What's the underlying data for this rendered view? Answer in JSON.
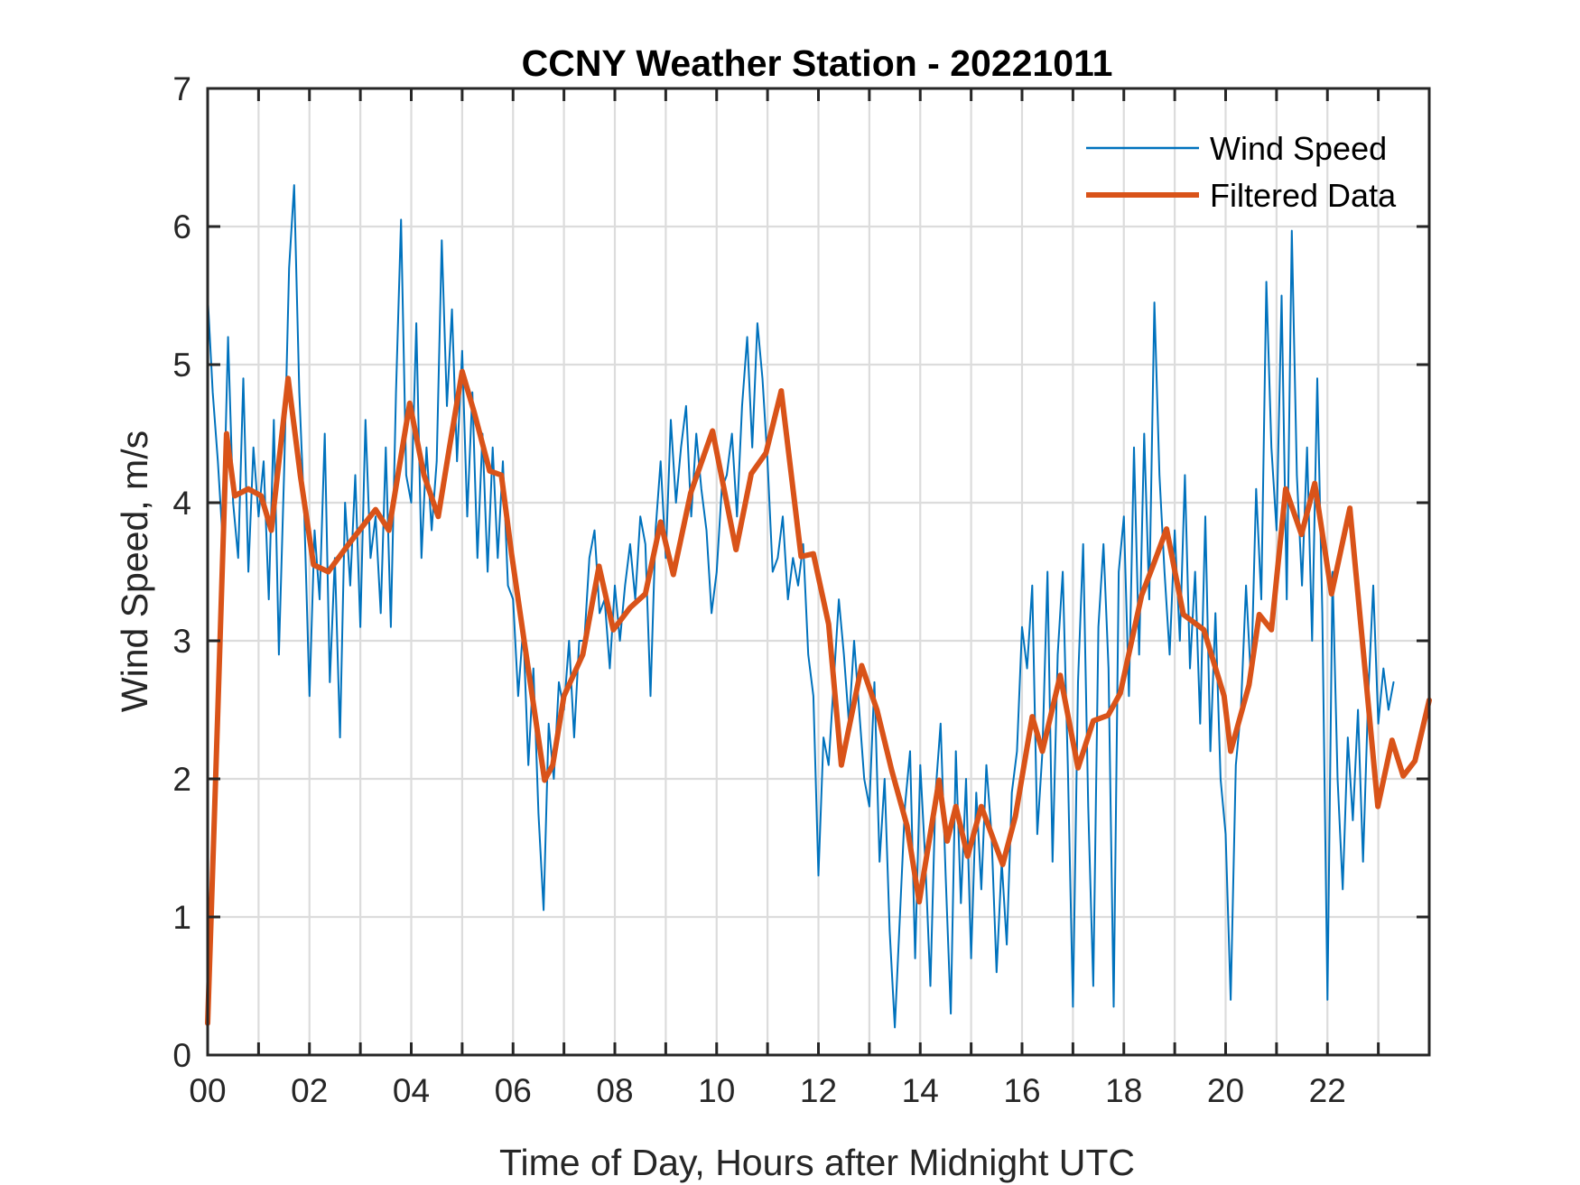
{
  "chart_data": {
    "type": "line",
    "title": "CCNY Weather Station - 20221011",
    "xlabel": "Time of Day, Hours after Midnight UTC",
    "ylabel": "Wind Speed, m/s",
    "xlim": [
      0,
      24
    ],
    "ylim": [
      0,
      7
    ],
    "xticks_minor_every_hours": 1,
    "xtick_labels": [
      "00",
      "02",
      "04",
      "06",
      "08",
      "10",
      "12",
      "14",
      "16",
      "18",
      "20",
      "22"
    ],
    "xtick_values": [
      0,
      2,
      4,
      6,
      8,
      10,
      12,
      14,
      16,
      18,
      20,
      22
    ],
    "yticks": [
      0,
      1,
      2,
      3,
      4,
      5,
      6,
      7
    ],
    "ytick_labels": [
      "0",
      "1",
      "2",
      "3",
      "4",
      "5",
      "6",
      "7"
    ],
    "grid": true,
    "legend_position": "top-right",
    "series": [
      {
        "name": "Wind Speed",
        "color": "#0072BD",
        "style": "thin",
        "x_step_hours": 0.1,
        "x_start": 0,
        "values": [
          5.5,
          4.8,
          4.3,
          3.7,
          5.2,
          4.0,
          3.6,
          4.9,
          3.5,
          4.4,
          3.9,
          4.3,
          3.3,
          4.6,
          2.9,
          4.2,
          5.7,
          6.3,
          4.8,
          3.9,
          2.6,
          3.8,
          3.3,
          4.5,
          2.7,
          3.6,
          2.3,
          4.0,
          3.4,
          4.2,
          3.1,
          4.6,
          3.6,
          3.9,
          3.2,
          4.4,
          3.1,
          4.8,
          6.05,
          4.2,
          4.0,
          5.3,
          3.6,
          4.4,
          3.8,
          4.3,
          5.9,
          4.7,
          5.4,
          4.3,
          5.1,
          3.9,
          4.8,
          3.6,
          4.5,
          3.5,
          4.4,
          3.6,
          4.3,
          3.4,
          3.3,
          2.6,
          3.1,
          2.1,
          2.8,
          1.75,
          1.05,
          2.4,
          2.0,
          2.7,
          2.5,
          3.0,
          2.3,
          3.0,
          3.0,
          3.6,
          3.8,
          3.2,
          3.3,
          2.8,
          3.4,
          3.0,
          3.4,
          3.7,
          3.3,
          3.9,
          3.7,
          2.6,
          3.8,
          4.3,
          3.6,
          4.6,
          4.0,
          4.4,
          4.7,
          3.9,
          4.5,
          4.1,
          3.8,
          3.2,
          3.5,
          4.1,
          4.2,
          4.5,
          3.9,
          4.7,
          5.2,
          4.4,
          5.3,
          4.9,
          4.3,
          3.5,
          3.6,
          3.9,
          3.3,
          3.6,
          3.4,
          3.7,
          2.9,
          2.6,
          1.3,
          2.3,
          2.1,
          2.7,
          3.3,
          2.9,
          2.4,
          3.0,
          2.5,
          2.0,
          1.8,
          2.7,
          1.4,
          2.0,
          0.9,
          0.2,
          1.0,
          1.8,
          2.2,
          0.7,
          2.1,
          1.4,
          0.5,
          1.9,
          2.4,
          1.3,
          0.3,
          2.2,
          1.1,
          2.0,
          0.7,
          1.9,
          1.2,
          2.1,
          1.6,
          0.6,
          1.4,
          0.8,
          1.9,
          2.2,
          3.1,
          2.8,
          3.4,
          1.6,
          2.2,
          3.5,
          1.4,
          2.9,
          3.5,
          2.1,
          0.35,
          2.7,
          3.7,
          1.8,
          0.5,
          3.1,
          3.7,
          2.8,
          0.35,
          3.5,
          3.9,
          2.6,
          4.4,
          2.9,
          4.5,
          3.3,
          5.45,
          4.2,
          3.5,
          2.9,
          3.8,
          3.0,
          4.2,
          2.8,
          3.5,
          2.4,
          3.9,
          2.2,
          3.2,
          2.0,
          1.6,
          0.4,
          2.1,
          2.5,
          3.4,
          2.7,
          4.1,
          3.3,
          5.6,
          4.4,
          3.8,
          5.5,
          3.3,
          5.97,
          4.2,
          3.4,
          4.4,
          3.0,
          4.9,
          3.2,
          0.4,
          3.5,
          2.0,
          1.2,
          2.3,
          1.7,
          2.5,
          1.4,
          2.6,
          3.4,
          2.4,
          2.8,
          2.5,
          2.7
        ]
      },
      {
        "name": "Filtered Data",
        "color": "#D95319",
        "style": "thick",
        "x": [
          0,
          0.2,
          0.37,
          0.53,
          0.8,
          1.05,
          1.25,
          1.58,
          1.82,
          2.08,
          2.37,
          2.77,
          3.3,
          3.56,
          3.97,
          4.25,
          4.53,
          4.75,
          5.0,
          5.24,
          5.54,
          5.77,
          5.97,
          6.23,
          6.62,
          6.78,
          7.0,
          7.37,
          7.69,
          7.97,
          8.3,
          8.6,
          8.9,
          9.15,
          9.49,
          9.92,
          10.38,
          10.68,
          10.97,
          11.27,
          11.66,
          11.9,
          12.2,
          12.45,
          12.85,
          13.15,
          13.44,
          13.74,
          13.98,
          14.37,
          14.53,
          14.7,
          14.93,
          15.2,
          15.62,
          15.87,
          16.2,
          16.4,
          16.75,
          17.1,
          17.4,
          17.69,
          17.93,
          18.35,
          18.58,
          18.84,
          19.17,
          19.57,
          19.97,
          20.1,
          20.46,
          20.66,
          20.9,
          21.18,
          21.49,
          21.75,
          22.08,
          22.44,
          22.75,
          22.99,
          23.27,
          23.49,
          23.72,
          24.0
        ],
        "values": [
          0.23,
          2.5,
          4.5,
          4.05,
          4.1,
          4.05,
          3.8,
          4.9,
          4.2,
          3.55,
          3.5,
          3.7,
          3.95,
          3.8,
          4.72,
          4.2,
          3.9,
          4.4,
          4.95,
          4.65,
          4.23,
          4.2,
          3.63,
          2.97,
          1.99,
          2.1,
          2.6,
          2.9,
          3.54,
          3.08,
          3.24,
          3.34,
          3.86,
          3.48,
          4.07,
          4.52,
          3.66,
          4.21,
          4.36,
          4.81,
          3.61,
          3.63,
          3.12,
          2.1,
          2.82,
          2.5,
          2.06,
          1.66,
          1.11,
          1.99,
          1.55,
          1.8,
          1.44,
          1.8,
          1.38,
          1.73,
          2.45,
          2.2,
          2.75,
          2.08,
          2.42,
          2.46,
          2.62,
          3.33,
          3.55,
          3.81,
          3.19,
          3.08,
          2.6,
          2.2,
          2.68,
          3.19,
          3.08,
          4.1,
          3.77,
          4.14,
          3.34,
          3.96,
          2.75,
          1.8,
          2.28,
          2.02,
          2.13,
          2.57
        ]
      }
    ]
  }
}
